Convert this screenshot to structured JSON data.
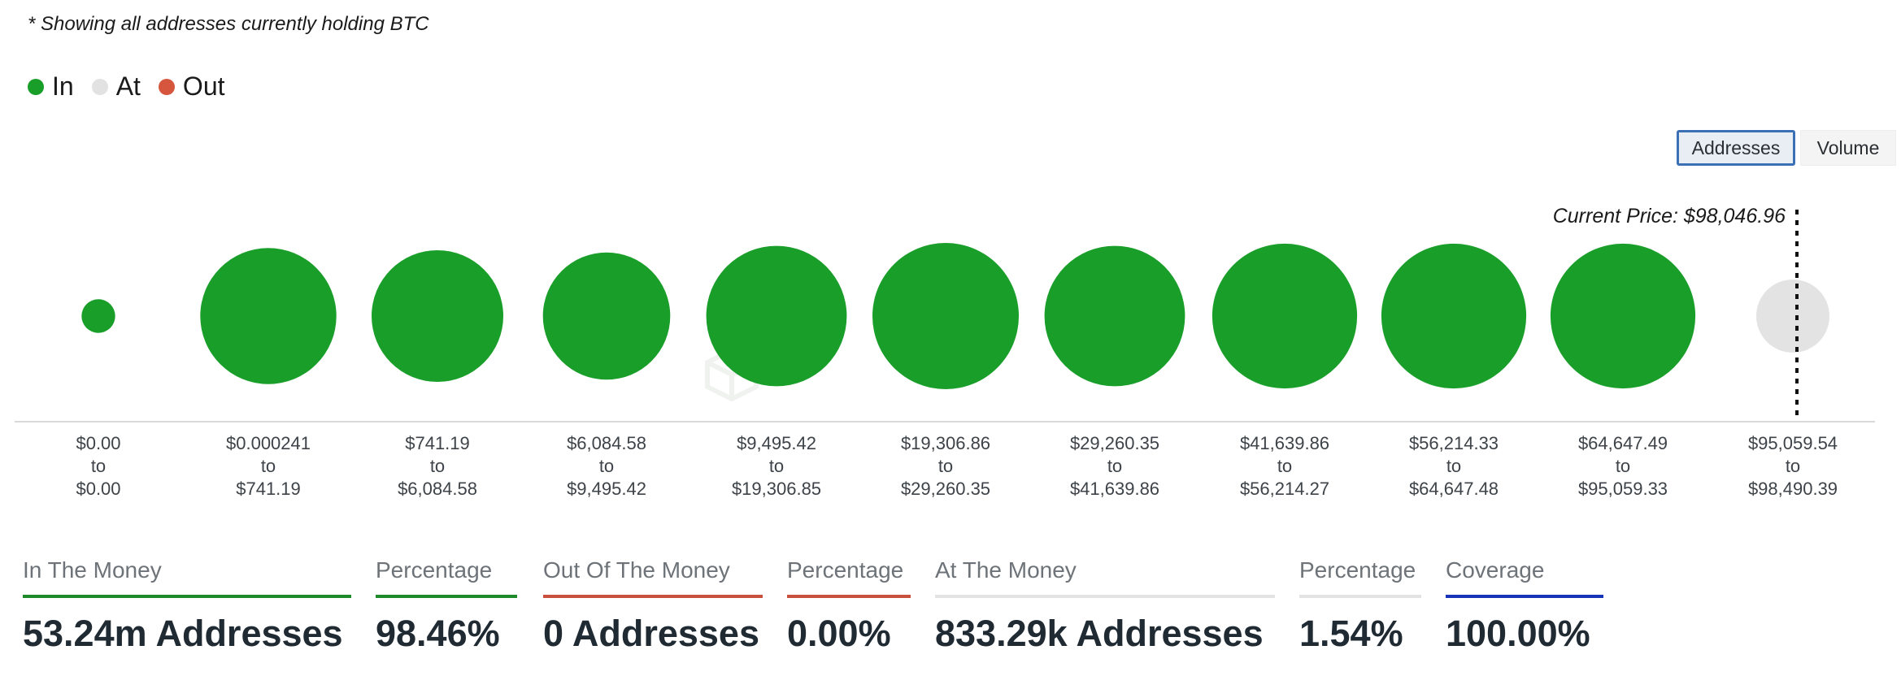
{
  "note": "* Showing all addresses currently holding BTC",
  "legend": [
    {
      "label": "In",
      "color": "#1a9e2a"
    },
    {
      "label": "At",
      "color": "#e2e2e2"
    },
    {
      "label": "Out",
      "color": "#d6553d"
    }
  ],
  "toggle": {
    "addresses_label": "Addresses",
    "volume_label": "Volume",
    "selected": "Addresses"
  },
  "watermark": "IntoTheBlock",
  "current_price_label": "Current Price: $98,046.96",
  "chart_data": {
    "type": "scatter",
    "encoding": "bubble size = relative number of addresses per price range",
    "categories": [
      {
        "from": "$0.00",
        "to": "$0.00",
        "status": "In",
        "relative_size": 0.23
      },
      {
        "from": "$0.000241",
        "to": "$741.19",
        "status": "In",
        "relative_size": 0.93
      },
      {
        "from": "$741.19",
        "to": "$6,084.58",
        "status": "In",
        "relative_size": 0.9
      },
      {
        "from": "$6,084.58",
        "to": "$9,495.42",
        "status": "In",
        "relative_size": 0.87
      },
      {
        "from": "$9,495.42",
        "to": "$19,306.85",
        "status": "In",
        "relative_size": 0.96
      },
      {
        "from": "$19,306.86",
        "to": "$29,260.35",
        "status": "In",
        "relative_size": 1.0
      },
      {
        "from": "$29,260.35",
        "to": "$41,639.86",
        "status": "In",
        "relative_size": 0.96
      },
      {
        "from": "$41,639.86",
        "to": "$56,214.27",
        "status": "In",
        "relative_size": 0.99
      },
      {
        "from": "$56,214.33",
        "to": "$64,647.48",
        "status": "In",
        "relative_size": 0.99
      },
      {
        "from": "$64,647.49",
        "to": "$95,059.33",
        "status": "In",
        "relative_size": 0.99
      },
      {
        "from": "$95,059.54",
        "to": "$98,490.39",
        "status": "At",
        "relative_size": 0.5
      }
    ],
    "connector": "to",
    "current_price_marker_after_index": 10
  },
  "stats": [
    {
      "label": "In The Money",
      "value": "53.24m Addresses",
      "bar_color": "#1f8a2b"
    },
    {
      "label": "Percentage",
      "value": "98.46%",
      "bar_color": "#1f8a2b"
    },
    {
      "label": "Out Of The Money",
      "value": "0 Addresses",
      "bar_color": "#c9503c"
    },
    {
      "label": "Percentage",
      "value": "0.00%",
      "bar_color": "#c9503c"
    },
    {
      "label": "At The Money",
      "value": "833.29k Addresses",
      "bar_color": "#e3e3e3"
    },
    {
      "label": "Percentage",
      "value": "1.54%",
      "bar_color": "#e3e3e3"
    },
    {
      "label": "Coverage",
      "value": "100.00%",
      "bar_color": "#1733b8"
    }
  ]
}
